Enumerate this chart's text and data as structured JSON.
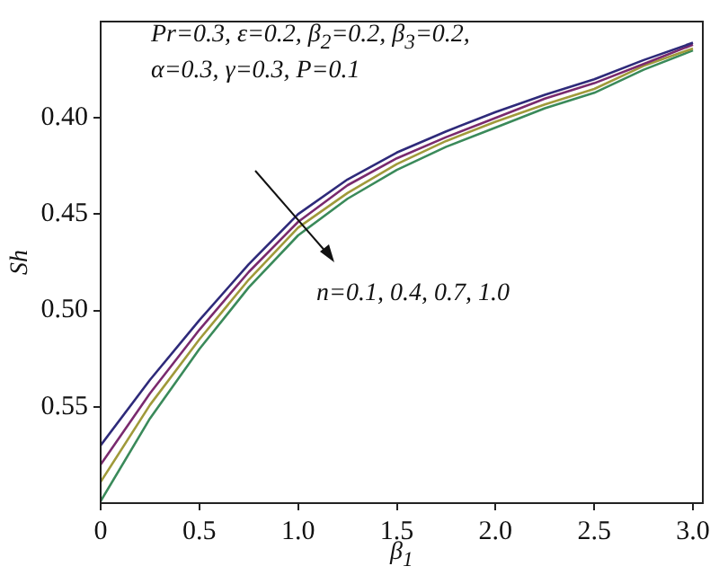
{
  "chart_data": {
    "type": "line",
    "xlabel": "β$_{1}$",
    "ylabel": "Sh",
    "annotations": [
      "Pr=0.3, ε=0.2, β$_{2}$=0.2, β$_{3}$=0.2,",
      "α=0.3, γ=0.3, P=0.1",
      "n=0.1, 0.4, 0.7, 1.0"
    ],
    "x": [
      0,
      0.25,
      0.5,
      0.75,
      1,
      1.25,
      1.5,
      1.75,
      2,
      2.25,
      2.5,
      2.75,
      3
    ],
    "series": [
      {
        "color": "#2e2a7a",
        "values": [
          0.57,
          0.536,
          0.505,
          0.476,
          0.45,
          0.432,
          0.418,
          0.407,
          0.397,
          0.388,
          0.38,
          0.37,
          0.361
        ]
      },
      {
        "color": "#7a2a6e",
        "values": [
          0.58,
          0.543,
          0.51,
          0.48,
          0.454,
          0.435,
          0.421,
          0.41,
          0.4,
          0.39,
          0.382,
          0.372,
          0.362
        ]
      },
      {
        "color": "#a09a3a",
        "values": [
          0.589,
          0.549,
          0.515,
          0.484,
          0.457,
          0.439,
          0.424,
          0.412,
          0.402,
          0.393,
          0.385,
          0.373,
          0.364
        ]
      },
      {
        "color": "#3a8a5a",
        "values": [
          0.599,
          0.556,
          0.52,
          0.488,
          0.461,
          0.442,
          0.427,
          0.415,
          0.405,
          0.395,
          0.387,
          0.375,
          0.365
        ]
      }
    ],
    "xlim": [
      0,
      3.05
    ],
    "xticks": [
      0,
      0.5,
      {
        "value": 1,
        "label": "1.0"
      },
      1.5,
      {
        "value": 2,
        "label": "2.0"
      },
      2.5,
      {
        "value": 3,
        "label": "3.0"
      }
    ],
    "ylim": [
      0.6,
      0.35
    ],
    "yticks": [
      {
        "value": 0.4,
        "label": "0.40"
      },
      0.45,
      {
        "value": 0.5,
        "label": "0.50"
      },
      0.55
    ],
    "grid": false,
    "legend": false,
    "line_style": "solid"
  }
}
